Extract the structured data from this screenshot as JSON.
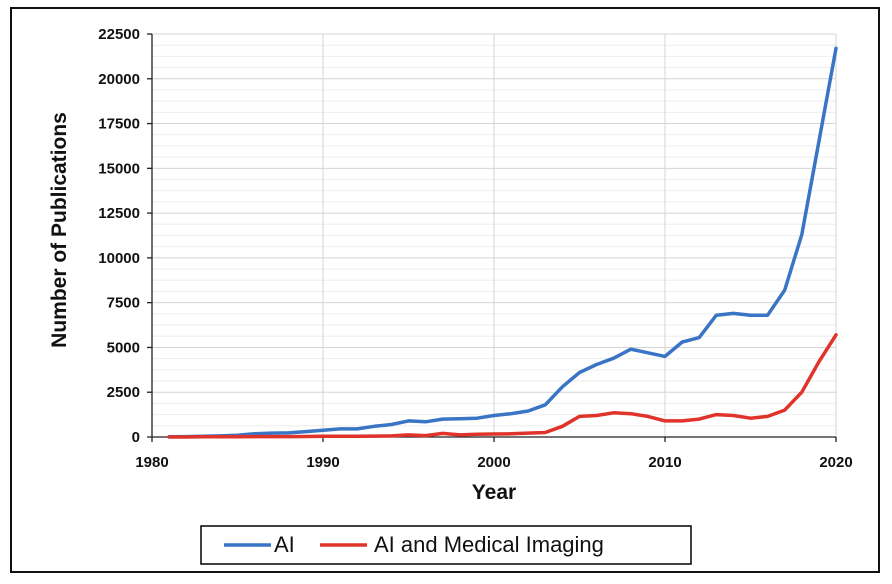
{
  "chart_data": {
    "type": "line",
    "title": "",
    "xlabel": "Year",
    "ylabel": "Number of Publications",
    "xlim": [
      1980,
      2020
    ],
    "ylim": [
      0,
      22500
    ],
    "xticks": [
      1980,
      1990,
      2000,
      2010,
      2020
    ],
    "yticks": [
      0,
      2500,
      5000,
      7500,
      10000,
      12500,
      15000,
      17500,
      20000,
      22500
    ],
    "grid": true,
    "legend_position": "bottom",
    "x": [
      1981,
      1982,
      1983,
      1984,
      1985,
      1986,
      1987,
      1988,
      1989,
      1990,
      1991,
      1992,
      1993,
      1994,
      1995,
      1996,
      1997,
      1998,
      1999,
      2000,
      2001,
      2002,
      2003,
      2004,
      2005,
      2006,
      2007,
      2008,
      2009,
      2010,
      2011,
      2012,
      2013,
      2014,
      2015,
      2016,
      2017,
      2018,
      2019,
      2020
    ],
    "series": [
      {
        "name": "AI",
        "color": "#3a74c4",
        "values": [
          10,
          20,
          40,
          60,
          100,
          180,
          220,
          230,
          300,
          380,
          450,
          450,
          600,
          700,
          900,
          850,
          1000,
          1020,
          1050,
          1200,
          1300,
          1450,
          1800,
          2800,
          3600,
          4050,
          4400,
          4900,
          4700,
          4500,
          5300,
          5550,
          6800,
          6900,
          6800,
          6800,
          8200,
          11300,
          16500,
          21700
        ]
      },
      {
        "name": "AI and Medical Imaging",
        "color": "#e0342a",
        "values": [
          0,
          0,
          10,
          10,
          15,
          20,
          20,
          20,
          30,
          40,
          40,
          40,
          50,
          60,
          120,
          80,
          200,
          120,
          150,
          170,
          180,
          220,
          250,
          600,
          1150,
          1200,
          1350,
          1300,
          1150,
          900,
          900,
          1000,
          1250,
          1200,
          1050,
          1150,
          1500,
          2500,
          4200,
          5700
        ]
      }
    ]
  }
}
